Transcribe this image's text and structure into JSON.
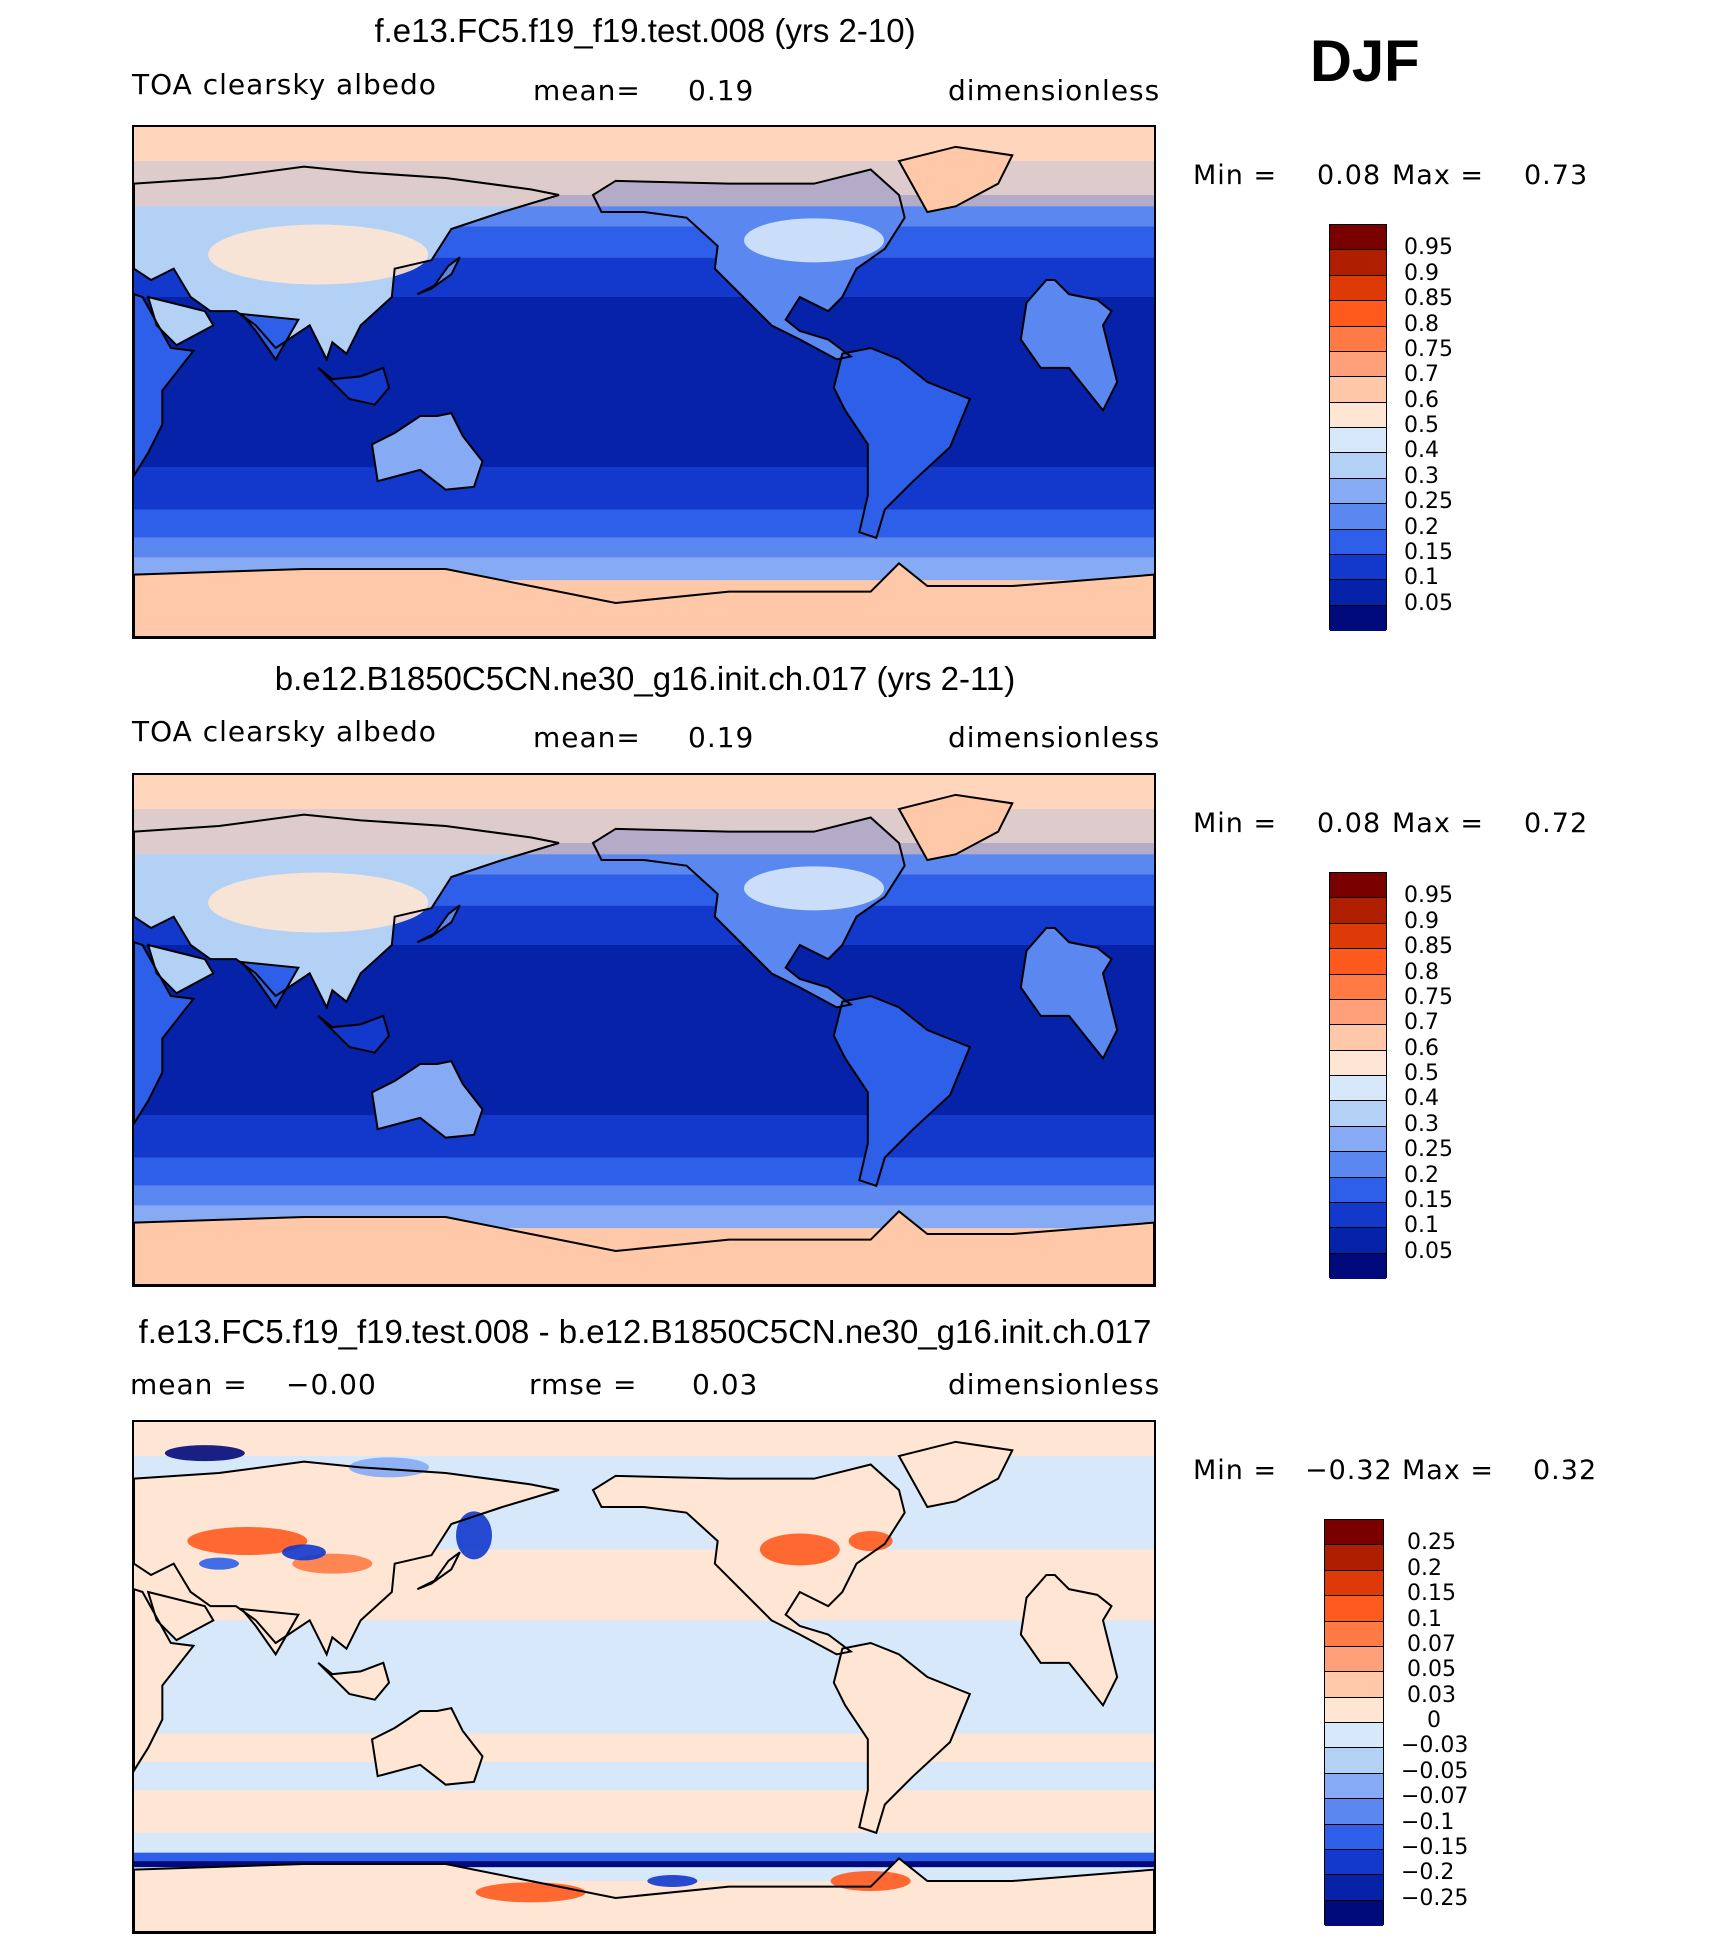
{
  "season": "DJF",
  "panels": [
    {
      "title": "f.e13.FC5.f19_f19.test.008 (yrs 2-10)",
      "left_label": "TOA clearsky albedo",
      "middle_label": "mean=",
      "middle_value": "0.19",
      "right_label": "dimensionless",
      "min_label": "Min =",
      "min_value": "0.08",
      "max_label": "Max =",
      "max_value": "0.73",
      "scheme": "abs",
      "colorbar": {
        "labels": [
          "0.95",
          "0.9",
          "0.85",
          "0.8",
          "0.75",
          "0.7",
          "0.6",
          "0.5",
          "0.4",
          "0.3",
          "0.25",
          "0.2",
          "0.15",
          "0.1",
          "0.05"
        ],
        "colors": [
          "#7a0000",
          "#b01e00",
          "#dd3a07",
          "#ff5a1e",
          "#ff7a45",
          "#ffa07a",
          "#ffc8a8",
          "#ffe6d4",
          "#d6e8fa",
          "#b3d0f5",
          "#86aaf4",
          "#5a88f0",
          "#2e5fe8",
          "#1238cc",
          "#0522a8",
          "#010a7a"
        ]
      }
    },
    {
      "title": "b.e12.B1850C5CN.ne30_g16.init.ch.017 (yrs 2-11)",
      "left_label": "TOA clearsky albedo",
      "middle_label": "mean=",
      "middle_value": "0.19",
      "right_label": "dimensionless",
      "min_label": "Min =",
      "min_value": "0.08",
      "max_label": "Max =",
      "max_value": "0.72",
      "scheme": "abs",
      "colorbar": {
        "labels": [
          "0.95",
          "0.9",
          "0.85",
          "0.8",
          "0.75",
          "0.7",
          "0.6",
          "0.5",
          "0.4",
          "0.3",
          "0.25",
          "0.2",
          "0.15",
          "0.1",
          "0.05"
        ],
        "colors": [
          "#7a0000",
          "#b01e00",
          "#dd3a07",
          "#ff5a1e",
          "#ff7a45",
          "#ffa07a",
          "#ffc8a8",
          "#ffe6d4",
          "#d6e8fa",
          "#b3d0f5",
          "#86aaf4",
          "#5a88f0",
          "#2e5fe8",
          "#1238cc",
          "#0522a8",
          "#010a7a"
        ]
      }
    },
    {
      "title": "f.e13.FC5.f19_f19.test.008 - b.e12.B1850C5CN.ne30_g16.init.ch.017",
      "left_label": "mean =",
      "left_value": "−0.00",
      "middle_label": "rmse =",
      "middle_value": "0.03",
      "right_label": "dimensionless",
      "min_label": "Min =",
      "min_value": "−0.32",
      "max_label": "Max =",
      "max_value": "0.32",
      "scheme": "diff",
      "colorbar": {
        "labels": [
          "0.25",
          "0.2",
          "0.15",
          "0.1",
          "0.07",
          "0.05",
          "0.03",
          "0",
          "−0.03",
          "−0.05",
          "−0.07",
          "−0.1",
          "−0.15",
          "−0.2",
          "−0.25"
        ],
        "colors": [
          "#7a0000",
          "#b01e00",
          "#dd3a07",
          "#ff5a1e",
          "#ff7a45",
          "#ffa07a",
          "#ffc8a8",
          "#ffe6d4",
          "#d6e8fa",
          "#b3d0f5",
          "#86aaf4",
          "#5a88f0",
          "#2e5fe8",
          "#1238cc",
          "#0522a8",
          "#010a7a"
        ]
      }
    }
  ],
  "chart_data": [
    {
      "type": "heatmap",
      "title": "f.e13.FC5.f19_f19.test.008 (yrs 2-10)",
      "variable": "TOA clearsky albedo",
      "units": "dimensionless",
      "mean": 0.19,
      "min": 0.08,
      "max": 0.73,
      "contour_levels": [
        0.05,
        0.1,
        0.15,
        0.2,
        0.25,
        0.3,
        0.4,
        0.5,
        0.6,
        0.7,
        0.75,
        0.8,
        0.85,
        0.9,
        0.95
      ]
    },
    {
      "type": "heatmap",
      "title": "b.e12.B1850C5CN.ne30_g16.init.ch.017 (yrs 2-11)",
      "variable": "TOA clearsky albedo",
      "units": "dimensionless",
      "mean": 0.19,
      "min": 0.08,
      "max": 0.72,
      "contour_levels": [
        0.05,
        0.1,
        0.15,
        0.2,
        0.25,
        0.3,
        0.4,
        0.5,
        0.6,
        0.7,
        0.75,
        0.8,
        0.85,
        0.9,
        0.95
      ]
    },
    {
      "type": "heatmap",
      "title": "f.e13.FC5.f19_f19.test.008 - b.e12.B1850C5CN.ne30_g16.init.ch.017",
      "units": "dimensionless",
      "mean": -0.0,
      "rmse": 0.03,
      "min": -0.32,
      "max": 0.32,
      "contour_levels": [
        -0.25,
        -0.2,
        -0.15,
        -0.1,
        -0.07,
        -0.05,
        -0.03,
        0,
        0.03,
        0.05,
        0.07,
        0.1,
        0.15,
        0.2,
        0.25
      ]
    }
  ]
}
